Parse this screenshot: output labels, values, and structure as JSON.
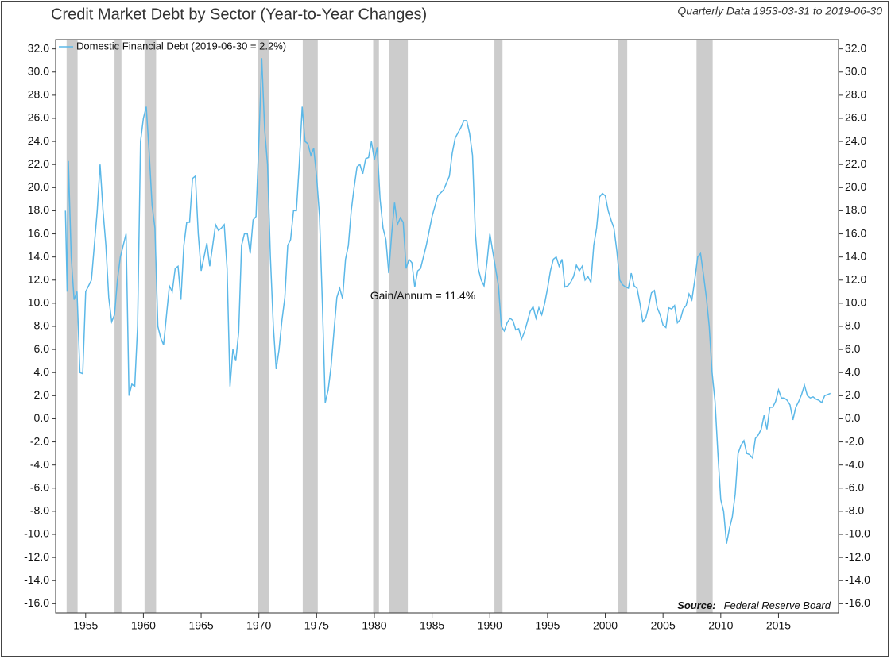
{
  "chart_data": {
    "type": "line",
    "title": "Credit Market Debt by Sector (Year-to-Year Changes)",
    "subtitle": "Quarterly Data 1953-03-31 to 2019-06-30",
    "source_label": "Source:",
    "source": "Federal Reserve Board",
    "reference_line": {
      "value": 11.4,
      "label": "Gain/Annum = 11.4%",
      "style": "dashed"
    },
    "legend": "upper left",
    "recession_color": "#cccccc",
    "recessions": [
      [
        1953.35,
        1954.3
      ],
      [
        1957.5,
        1958.1
      ],
      [
        1960.1,
        1961.1
      ],
      [
        1969.9,
        1970.9
      ],
      [
        1973.8,
        1975.1
      ],
      [
        1979.9,
        1980.4
      ],
      [
        1981.3,
        1982.9
      ],
      [
        1990.4,
        1991.1
      ],
      [
        2001.1,
        2001.9
      ],
      [
        2007.9,
        2009.3
      ]
    ],
    "xlim": [
      1952.4,
      2020.2
    ],
    "xticks": [
      1955,
      1960,
      1965,
      1970,
      1975,
      1980,
      1985,
      1990,
      1995,
      2000,
      2005,
      2010,
      2015
    ],
    "ylim": [
      -16.8,
      32.8
    ],
    "yticks": [
      {
        "value": 32,
        "label": "32.0"
      },
      {
        "value": 30,
        "label": "30.0"
      },
      {
        "value": 28,
        "label": "28.0"
      },
      {
        "value": 26,
        "label": "26.0"
      },
      {
        "value": 24,
        "label": "24.0"
      },
      {
        "value": 22,
        "label": "22.0"
      },
      {
        "value": 20,
        "label": "20.0"
      },
      {
        "value": 18,
        "label": "18.0"
      },
      {
        "value": 16,
        "label": "16.0"
      },
      {
        "value": 14,
        "label": "14.0"
      },
      {
        "value": 12,
        "label": "12.0"
      },
      {
        "value": 10,
        "label": "10.0"
      },
      {
        "value": 8,
        "label": "8.0"
      },
      {
        "value": 6,
        "label": "6.0"
      },
      {
        "value": 4,
        "label": "4.0"
      },
      {
        "value": 2,
        "label": "2.0"
      },
      {
        "value": 0,
        "label": "0.0"
      },
      {
        "value": -2,
        "label": "-2.0"
      },
      {
        "value": -4,
        "label": "-4.0"
      },
      {
        "value": -6,
        "label": "-6.0"
      },
      {
        "value": -8,
        "label": "-8.0"
      },
      {
        "value": -10,
        "label": "-10.0"
      },
      {
        "value": -12,
        "label": "-12.0"
      },
      {
        "value": -14,
        "label": "-14.0"
      },
      {
        "value": -16,
        "label": "-16.0"
      }
    ],
    "x": [
      1953.25,
      1953.4,
      1953.5,
      1953.75,
      1954.0,
      1954.25,
      1954.5,
      1954.75,
      1955.0,
      1955.5,
      1956.0,
      1956.25,
      1956.5,
      1956.75,
      1957.0,
      1957.25,
      1957.5,
      1957.75,
      1958.0,
      1958.25,
      1958.5,
      1958.75,
      1959.0,
      1959.25,
      1959.5,
      1959.75,
      1960.0,
      1960.25,
      1960.5,
      1960.75,
      1961.0,
      1961.25,
      1961.5,
      1961.75,
      1962.0,
      1962.25,
      1962.5,
      1962.75,
      1963.0,
      1963.25,
      1963.5,
      1963.75,
      1964.0,
      1964.25,
      1964.5,
      1964.75,
      1965.0,
      1965.25,
      1965.5,
      1965.75,
      1966.0,
      1966.25,
      1966.5,
      1966.75,
      1967.0,
      1967.25,
      1967.5,
      1967.75,
      1968.0,
      1968.25,
      1968.5,
      1968.75,
      1969.0,
      1969.25,
      1969.5,
      1969.75,
      1970.0,
      1970.25,
      1970.5,
      1970.75,
      1971.0,
      1971.25,
      1971.5,
      1971.75,
      1972.0,
      1972.25,
      1972.5,
      1972.75,
      1973.0,
      1973.25,
      1973.5,
      1973.75,
      1974.0,
      1974.25,
      1974.5,
      1974.75,
      1975.0,
      1975.25,
      1975.5,
      1975.75,
      1976.0,
      1976.25,
      1976.5,
      1976.75,
      1977.0,
      1977.25,
      1977.5,
      1977.75,
      1978.0,
      1978.25,
      1978.5,
      1978.75,
      1979.0,
      1979.25,
      1979.5,
      1979.75,
      1980.0,
      1980.25,
      1980.5,
      1980.75,
      1981.0,
      1981.25,
      1981.5,
      1981.75,
      1982.0,
      1982.25,
      1982.5,
      1982.75,
      1983.0,
      1983.25,
      1983.5,
      1983.75,
      1984.0,
      1984.5,
      1985.0,
      1985.5,
      1986.0,
      1986.5,
      1986.75,
      1987.0,
      1987.5,
      1987.75,
      1988.0,
      1988.25,
      1988.5,
      1988.75,
      1989.0,
      1989.25,
      1989.5,
      1989.75,
      1990.0,
      1990.25,
      1990.5,
      1990.75,
      1991.0,
      1991.25,
      1991.5,
      1991.75,
      1992.0,
      1992.25,
      1992.5,
      1992.75,
      1993.0,
      1993.5,
      1993.75,
      1994.0,
      1994.25,
      1994.5,
      1994.75,
      1995.0,
      1995.25,
      1995.5,
      1995.75,
      1996.0,
      1996.25,
      1996.5,
      1996.75,
      1997.0,
      1997.25,
      1997.5,
      1997.75,
      1998.0,
      1998.25,
      1998.5,
      1998.75,
      1999.0,
      1999.25,
      1999.5,
      1999.75,
      2000.0,
      2000.25,
      2000.5,
      2000.75,
      2001.0,
      2001.25,
      2001.5,
      2001.75,
      2002.0,
      2002.25,
      2002.5,
      2002.75,
      2003.0,
      2003.25,
      2003.5,
      2003.75,
      2004.0,
      2004.25,
      2004.5,
      2004.75,
      2005.0,
      2005.25,
      2005.5,
      2005.75,
      2006.0,
      2006.25,
      2006.5,
      2006.75,
      2007.0,
      2007.25,
      2007.5,
      2007.75,
      2008.0,
      2008.25,
      2008.5,
      2008.75,
      2009.0,
      2009.25,
      2009.5,
      2009.75,
      2010.0,
      2010.25,
      2010.5,
      2010.75,
      2011.0,
      2011.25,
      2011.5,
      2011.75,
      2012.0,
      2012.25,
      2012.5,
      2012.75,
      2013.0,
      2013.25,
      2013.5,
      2013.75,
      2014.0,
      2014.25,
      2014.5,
      2014.75,
      2015.0,
      2015.25,
      2015.5,
      2015.75,
      2016.0,
      2016.25,
      2016.5,
      2016.75,
      2017.0,
      2017.25,
      2017.5,
      2017.75,
      2018.0,
      2018.25,
      2018.5,
      2018.75,
      2019.0,
      2019.25,
      2019.5
    ],
    "series": [
      {
        "name": "Domestic Financial Debt (2019-06-30 = 2.2%)",
        "color": "#5bb8e8",
        "values": [
          18,
          11,
          22.3,
          14,
          10.3,
          11,
          4,
          3.9,
          11,
          12,
          18,
          22,
          18,
          15,
          10.5,
          8.4,
          9,
          12,
          14,
          15,
          16,
          2,
          3,
          2.8,
          8,
          24,
          26,
          27,
          23,
          18.5,
          16.5,
          8,
          7,
          6.4,
          9,
          11.5,
          11,
          13,
          13.2,
          10.3,
          15,
          17,
          17,
          20.8,
          21,
          16,
          12.8,
          14,
          15.2,
          13.2,
          15,
          16.8,
          16.3,
          16.5,
          16.8,
          13,
          2.8,
          6,
          5,
          7.5,
          15,
          16,
          16,
          14.3,
          17.2,
          17.5,
          24,
          31.2,
          25,
          22,
          14,
          8,
          4.3,
          6,
          8.5,
          10.5,
          15,
          15.5,
          18,
          18,
          22,
          27,
          24,
          23.8,
          22.8,
          23.4,
          21,
          17.5,
          10,
          1.4,
          2.5,
          4.5,
          7.5,
          10.5,
          11.3,
          10.4,
          13.8,
          15,
          18,
          20,
          21.8,
          22,
          21.2,
          22.5,
          22.6,
          24,
          22.4,
          23.5,
          19,
          16.5,
          15.5,
          12.6,
          16,
          18.7,
          16.8,
          17.4,
          17,
          13,
          13.8,
          13.5,
          11.4,
          12.8,
          13,
          15,
          17.5,
          19.3,
          19.8,
          21,
          23,
          24.3,
          25.2,
          25.8,
          25.8,
          24.7,
          22.8,
          16,
          13,
          12,
          11.5,
          13.5,
          16,
          14.5,
          13,
          11.5,
          8,
          7.6,
          8.3,
          8.7,
          8.5,
          7.7,
          7.8,
          6.9,
          7.5,
          9.3,
          9.7,
          8.7,
          9.6,
          9,
          10,
          11.3,
          12.8,
          13.8,
          14,
          13.2,
          13.8,
          11.4,
          11.5,
          11.8,
          12.3,
          13.3,
          12.8,
          13.2,
          12,
          12.3,
          11.8,
          15,
          16.5,
          19.2,
          19.5,
          19.3,
          18,
          17.2,
          16.5,
          14.5,
          12,
          11.6,
          11.4,
          11.3,
          12.6,
          11.5,
          11.3,
          10,
          8.4,
          8.7,
          9.7,
          10.9,
          11.1,
          9.6,
          9,
          8.1,
          7.9,
          9.6,
          9.5,
          9.8,
          8.3,
          8.6,
          9.5,
          9.8,
          10.8,
          10.3,
          12,
          14,
          14.3,
          12.5,
          10.5,
          8,
          4,
          1.5,
          -3,
          -7,
          -8,
          -10.8,
          -9.5,
          -8.5,
          -6.5,
          -3,
          -2.3,
          -1.9,
          -3,
          -3.1,
          -3.4,
          -1.7,
          -1.4,
          -0.9,
          0.3,
          -0.9,
          1,
          1,
          1.5,
          2.5,
          1.8,
          1.8,
          1.6,
          1.2,
          -0.1,
          1,
          1.5,
          2.1,
          2.9,
          2,
          1.8,
          1.9,
          1.7,
          1.6,
          1.4,
          2,
          2.1,
          2.2
        ]
      }
    ]
  }
}
